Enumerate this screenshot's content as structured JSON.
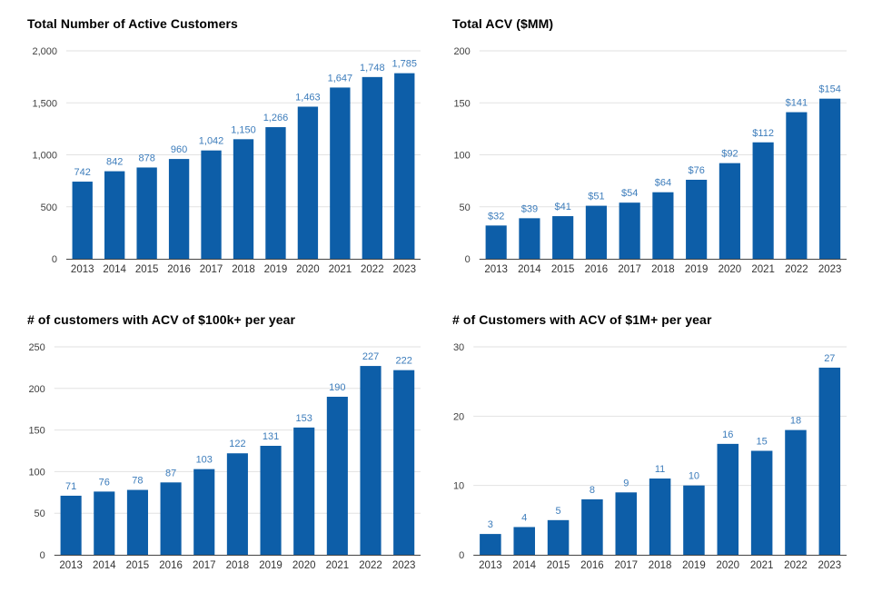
{
  "page": {
    "background": "#ffffff",
    "description": "Dashboard of four bar charts showing customer and ACV growth 2013-2023"
  },
  "colors": {
    "bar_fill": "#0d5ea8",
    "data_label": "#3c7cbb",
    "gridline": "#e2e2e2",
    "axis_baseline": "#444444",
    "y_tick_text": "#404040",
    "x_tick_text": "#333333",
    "title_text": "#000000"
  },
  "chart_data": [
    {
      "type": "bar",
      "title": "Total Number of Active Customers",
      "categories": [
        "2013",
        "2014",
        "2015",
        "2016",
        "2017",
        "2018",
        "2019",
        "2020",
        "2021",
        "2022",
        "2023"
      ],
      "values": [
        742,
        842,
        878,
        960,
        1042,
        1150,
        1266,
        1463,
        1647,
        1748,
        1785
      ],
      "data_labels": [
        "742",
        "842",
        "878",
        "960",
        "1,042",
        "1,150",
        "1,266",
        "1,463",
        "1,647",
        "1,748",
        "1,785"
      ],
      "xlabel": "",
      "ylabel": "",
      "ylim": [
        0,
        2000
      ],
      "ytick_values": [
        0,
        500,
        1000,
        1500,
        2000
      ],
      "ytick_labels": [
        "0",
        "500",
        "1,000",
        "1,500",
        "2,000"
      ],
      "grid": true,
      "legend": "none"
    },
    {
      "type": "bar",
      "title": "Total ACV ($MM)",
      "categories": [
        "2013",
        "2014",
        "2015",
        "2016",
        "2017",
        "2018",
        "2019",
        "2020",
        "2021",
        "2022",
        "2023"
      ],
      "values": [
        32,
        39,
        41,
        51,
        54,
        64,
        76,
        92,
        112,
        141,
        154
      ],
      "data_labels": [
        "$32",
        "$39",
        "$41",
        "$51",
        "$54",
        "$64",
        "$76",
        "$92",
        "$112",
        "$141",
        "$154"
      ],
      "xlabel": "",
      "ylabel": "",
      "ylim": [
        0,
        200
      ],
      "ytick_values": [
        0,
        50,
        100,
        150,
        200
      ],
      "ytick_labels": [
        "0",
        "50",
        "100",
        "150",
        "200"
      ],
      "grid": true,
      "legend": "none"
    },
    {
      "type": "bar",
      "title": "# of customers with ACV of $100k+ per year",
      "categories": [
        "2013",
        "2014",
        "2015",
        "2016",
        "2017",
        "2018",
        "2019",
        "2020",
        "2021",
        "2022",
        "2023"
      ],
      "values": [
        71,
        76,
        78,
        87,
        103,
        122,
        131,
        153,
        190,
        227,
        222
      ],
      "data_labels": [
        "71",
        "76",
        "78",
        "87",
        "103",
        "122",
        "131",
        "153",
        "190",
        "227",
        "222"
      ],
      "xlabel": "",
      "ylabel": "",
      "ylim": [
        0,
        250
      ],
      "ytick_values": [
        0,
        50,
        100,
        150,
        200,
        250
      ],
      "ytick_labels": [
        "0",
        "50",
        "100",
        "150",
        "200",
        "250"
      ],
      "grid": true,
      "legend": "none"
    },
    {
      "type": "bar",
      "title": "# of Customers with ACV of $1M+ per year",
      "categories": [
        "2013",
        "2014",
        "2015",
        "2016",
        "2017",
        "2018",
        "2019",
        "2020",
        "2021",
        "2022",
        "2023"
      ],
      "values": [
        3,
        4,
        5,
        8,
        9,
        11,
        10,
        16,
        15,
        18,
        27
      ],
      "data_labels": [
        "3",
        "4",
        "5",
        "8",
        "9",
        "11",
        "10",
        "16",
        "15",
        "18",
        "27"
      ],
      "xlabel": "",
      "ylabel": "",
      "ylim": [
        0,
        30
      ],
      "ytick_values": [
        0,
        10,
        20,
        30
      ],
      "ytick_labels": [
        "0",
        "10",
        "20",
        "30"
      ],
      "grid": true,
      "legend": "none"
    }
  ]
}
